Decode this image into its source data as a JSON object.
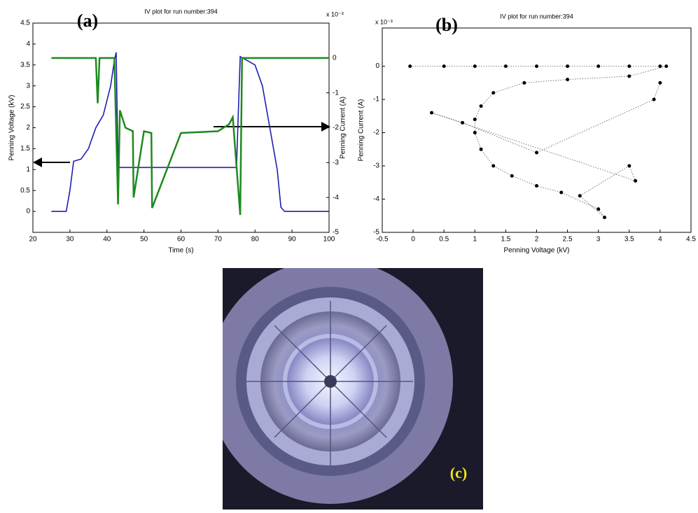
{
  "chart_data": [
    {
      "type": "line",
      "panel_label": "(a)",
      "title": "IV plot for run number:394",
      "xlabel": "Time (s)",
      "ylabel": "Penning Voltage (kV)",
      "y2label": "Penning Current (A)",
      "y2_scale_label": "x 10⁻³",
      "xlim": [
        20,
        100
      ],
      "xticks": [
        20,
        30,
        40,
        50,
        60,
        70,
        80,
        90,
        100
      ],
      "ylim": [
        -0.5,
        4.5
      ],
      "yticks": [
        0,
        0.5,
        1,
        1.5,
        2,
        2.5,
        3,
        3.5,
        4,
        4.5
      ],
      "y2lim": [
        -5,
        1
      ],
      "y2ticks": [
        -5,
        -4,
        -3,
        -2,
        -1,
        0
      ],
      "series": [
        {
          "color": "#1f1fb0",
          "x": [
            25,
            29,
            30,
            31,
            33,
            35,
            37,
            39,
            41,
            42,
            42.5,
            43,
            50,
            60,
            70,
            75,
            76,
            77,
            80,
            82,
            84,
            86,
            87,
            88,
            100
          ],
          "values": [
            0,
            0,
            0.5,
            1.2,
            1.25,
            1.5,
            2.0,
            2.3,
            3.0,
            3.6,
            3.8,
            1.05,
            1.05,
            1.05,
            1.05,
            1.05,
            3.7,
            3.65,
            3.5,
            3.0,
            2.0,
            1.0,
            0.1,
            0,
            0
          ]
        },
        {
          "color": "#1e8a1e",
          "axis": "y2",
          "x": [
            25,
            37,
            37.5,
            38,
            42,
            43,
            43.5,
            45,
            47,
            47.2,
            50,
            52,
            52.2,
            60,
            70,
            73,
            74,
            76,
            76.5,
            80,
            100
          ],
          "values": [
            0,
            0,
            -1.3,
            0,
            0,
            -4.2,
            -1.5,
            -2.0,
            -2.1,
            -4.0,
            -2.1,
            -2.15,
            -4.3,
            -2.15,
            -2.1,
            -1.9,
            -1.7,
            -4.5,
            0,
            0,
            0
          ]
        }
      ]
    },
    {
      "type": "scatter",
      "panel_label": "(b)",
      "title": "IV plot for run number:394",
      "xlabel": "Penning Voltage (kV)",
      "ylabel": "Penning Current (A)",
      "y_scale_label": "x 10⁻³",
      "xlim": [
        -0.5,
        4.5
      ],
      "xticks": [
        -0.5,
        0,
        0.5,
        1,
        1.5,
        2,
        2.5,
        3,
        3.5,
        4,
        4.5
      ],
      "ylim": [
        -5,
        1.15
      ],
      "yticks": [
        -5,
        -4,
        -3,
        -2,
        -1,
        0
      ],
      "color": "#000000",
      "x": [
        -0.05,
        0.5,
        1,
        1.5,
        2,
        2.5,
        3,
        3.5,
        4,
        4.1,
        3.5,
        2.5,
        1.8,
        1.3,
        1.1,
        1.0,
        1.0,
        1.1,
        1.3,
        1.6,
        2.0,
        2.4,
        3.0,
        3.1,
        2.7,
        3.5,
        3.6,
        0.3,
        0.8,
        2.0,
        3.9,
        4.0
      ],
      "values": [
        0,
        0,
        0,
        0,
        0,
        0,
        0,
        0,
        0,
        0,
        -0.3,
        -0.4,
        -0.5,
        -0.8,
        -1.2,
        -1.6,
        -2.0,
        -2.5,
        -3.0,
        -3.3,
        -3.6,
        -3.8,
        -4.3,
        -4.55,
        -3.9,
        -3.0,
        -3.45,
        -1.4,
        -1.7,
        -2.6,
        -1.0,
        -0.5
      ]
    }
  ],
  "photo": {
    "label": "(c)"
  }
}
